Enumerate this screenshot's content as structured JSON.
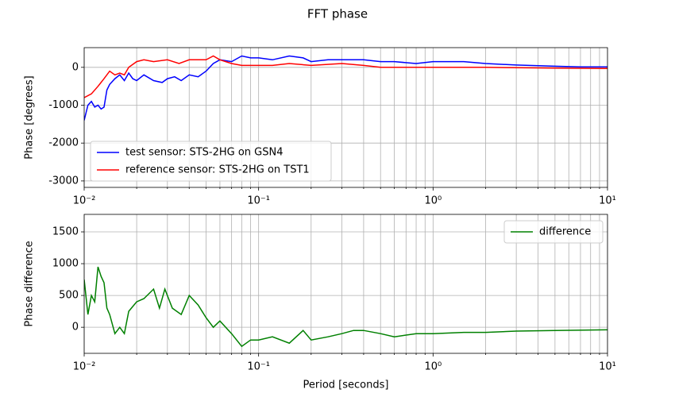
{
  "chart_data": [
    {
      "type": "line",
      "suptitle": "FFT phase",
      "ylabel": "Phase [degrees]",
      "log_x": true,
      "grid": true,
      "legend": "lower left",
      "xlim": [
        0.01,
        10
      ],
      "xticks": [
        {
          "value": 0.01,
          "label": "10⁻²"
        },
        {
          "value": 0.1,
          "label": "10⁻¹"
        },
        {
          "value": 1,
          "label": "10⁰"
        },
        {
          "value": 10,
          "label": "10¹"
        }
      ],
      "xminorticks": [
        0.02,
        0.03,
        0.04,
        0.05,
        0.06,
        0.07,
        0.08,
        0.09,
        0.2,
        0.3,
        0.4,
        0.5,
        0.6,
        0.7,
        0.8,
        0.9,
        2,
        3,
        4,
        5,
        6,
        7,
        8,
        9
      ],
      "ylim": [
        -3170,
        520
      ],
      "yticks": [
        -3000,
        -2000,
        -1000,
        0
      ],
      "series": [
        {
          "name": "test sensor: STS-2HG on GSN4",
          "color": "#0000ff",
          "x": [
            0.01,
            0.0105,
            0.011,
            0.0115,
            0.012,
            0.0125,
            0.013,
            0.0135,
            0.014,
            0.015,
            0.016,
            0.017,
            0.018,
            0.019,
            0.02,
            0.022,
            0.025,
            0.028,
            0.03,
            0.033,
            0.036,
            0.04,
            0.045,
            0.05,
            0.055,
            0.06,
            0.07,
            0.08,
            0.09,
            0.1,
            0.12,
            0.15,
            0.18,
            0.2,
            0.25,
            0.3,
            0.4,
            0.5,
            0.6,
            0.8,
            1,
            1.5,
            2,
            3,
            5,
            7,
            10
          ],
          "values": [
            -1400,
            -1000,
            -900,
            -1050,
            -1000,
            -1100,
            -1050,
            -600,
            -450,
            -300,
            -200,
            -350,
            -150,
            -300,
            -350,
            -200,
            -350,
            -400,
            -300,
            -250,
            -350,
            -200,
            -250,
            -100,
            100,
            200,
            150,
            300,
            250,
            250,
            200,
            300,
            250,
            150,
            200,
            200,
            200,
            150,
            150,
            100,
            150,
            150,
            100,
            60,
            30,
            10,
            10
          ]
        },
        {
          "name": "reference sensor: STS-2HG on TST1",
          "color": "#ff0000",
          "x": [
            0.01,
            0.011,
            0.012,
            0.013,
            0.014,
            0.015,
            0.016,
            0.017,
            0.018,
            0.02,
            0.022,
            0.025,
            0.03,
            0.035,
            0.04,
            0.05,
            0.055,
            0.06,
            0.07,
            0.08,
            0.1,
            0.12,
            0.15,
            0.2,
            0.3,
            0.4,
            0.5,
            0.7,
            1,
            2,
            5,
            10
          ],
          "values": [
            -800,
            -700,
            -500,
            -300,
            -100,
            -200,
            -150,
            -200,
            0,
            150,
            200,
            150,
            200,
            100,
            200,
            200,
            300,
            200,
            100,
            50,
            50,
            50,
            100,
            50,
            100,
            50,
            0,
            0,
            0,
            0,
            -20,
            -30
          ]
        }
      ]
    },
    {
      "type": "line",
      "xlabel": "Period [seconds]",
      "ylabel": "Phase difference",
      "log_x": true,
      "grid": true,
      "legend": "upper right",
      "xlim": [
        0.01,
        10
      ],
      "xticks": [
        {
          "value": 0.01,
          "label": "10⁻²"
        },
        {
          "value": 0.1,
          "label": "10⁻¹"
        },
        {
          "value": 1,
          "label": "10⁰"
        },
        {
          "value": 10,
          "label": "10¹"
        }
      ],
      "xminorticks": [
        0.02,
        0.03,
        0.04,
        0.05,
        0.06,
        0.07,
        0.08,
        0.09,
        0.2,
        0.3,
        0.4,
        0.5,
        0.6,
        0.7,
        0.8,
        0.9,
        2,
        3,
        4,
        5,
        6,
        7,
        8,
        9
      ],
      "ylim": [
        -410,
        1775
      ],
      "yticks": [
        0,
        500,
        1000,
        1500
      ],
      "series": [
        {
          "name": "difference",
          "color": "#008000",
          "x": [
            0.01,
            0.0105,
            0.011,
            0.0115,
            0.012,
            0.0125,
            0.013,
            0.0135,
            0.014,
            0.015,
            0.016,
            0.017,
            0.018,
            0.02,
            0.022,
            0.025,
            0.027,
            0.029,
            0.032,
            0.036,
            0.04,
            0.045,
            0.05,
            0.055,
            0.06,
            0.07,
            0.08,
            0.09,
            0.1,
            0.12,
            0.15,
            0.18,
            0.2,
            0.25,
            0.3,
            0.35,
            0.4,
            0.5,
            0.6,
            0.8,
            1,
            1.5,
            2,
            3,
            5,
            10
          ],
          "values": [
            750,
            200,
            500,
            400,
            950,
            800,
            700,
            300,
            200,
            -100,
            0,
            -100,
            250,
            400,
            450,
            600,
            300,
            600,
            300,
            200,
            500,
            350,
            150,
            0,
            100,
            -100,
            -300,
            -200,
            -200,
            -150,
            -250,
            -50,
            -200,
            -150,
            -100,
            -50,
            -50,
            -100,
            -150,
            -100,
            -100,
            -80,
            -80,
            -60,
            -50,
            -40
          ]
        }
      ]
    }
  ]
}
